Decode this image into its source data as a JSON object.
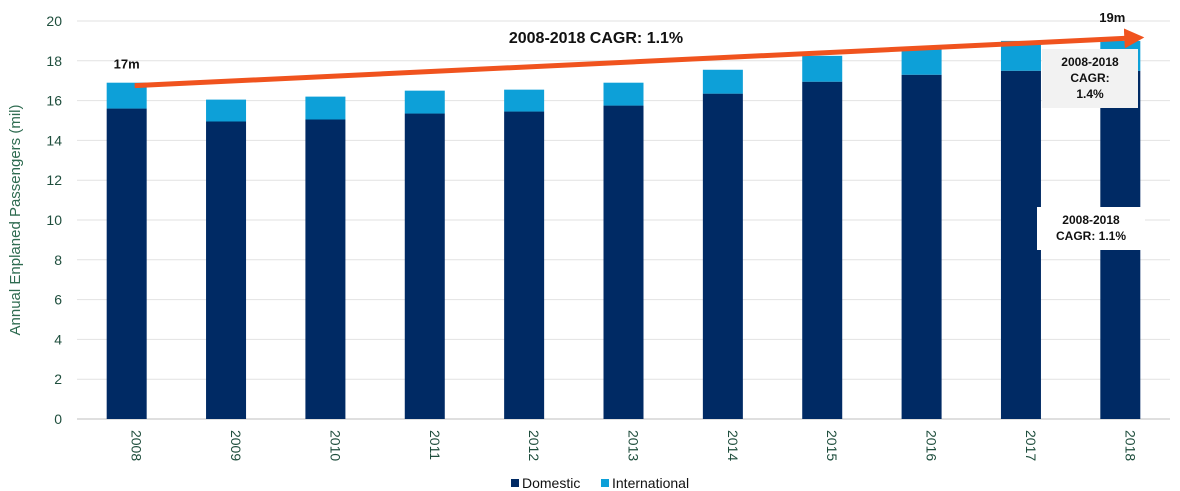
{
  "chart_data": {
    "type": "bar",
    "stacked": true,
    "title": "",
    "xlabel": "",
    "ylabel": "Annual Enplaned Passengers (mil)",
    "ylim": [
      0,
      20
    ],
    "yticks": [
      "0",
      "2",
      "4",
      "6",
      "8",
      "10",
      "12",
      "14",
      "16",
      "18",
      "20"
    ],
    "categories": [
      "2008",
      "2009",
      "2010",
      "2011",
      "2012",
      "2013",
      "2014",
      "2015",
      "2016",
      "2017",
      "2018"
    ],
    "series": [
      {
        "name": "Domestic",
        "color": "#002a64",
        "values": [
          15.6,
          14.95,
          15.05,
          15.35,
          15.45,
          15.75,
          16.35,
          16.95,
          17.3,
          17.5,
          17.5
        ]
      },
      {
        "name": "International",
        "color": "#0da0d8",
        "values": [
          1.3,
          1.1,
          1.15,
          1.15,
          1.1,
          1.15,
          1.2,
          1.3,
          1.4,
          1.5,
          1.5
        ]
      }
    ],
    "grid": true,
    "legend": "bottom",
    "annotations": {
      "start_label": "17m",
      "end_label": "19m",
      "total_cagr": "2008-2018 CAGR: 1.1%",
      "intl_cagr_lines": [
        "2008-2018",
        "CAGR:",
        "1.4%"
      ],
      "dom_cagr_lines": [
        "2008-2018",
        "CAGR: 1.1%"
      ],
      "arrow_color": "#f0531e"
    }
  }
}
